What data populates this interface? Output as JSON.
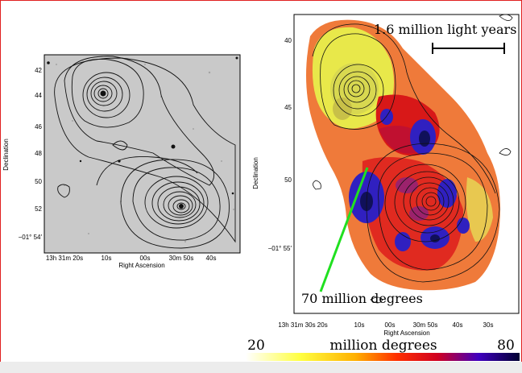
{
  "left_panel": {
    "y_axis_label": "Declination",
    "x_axis_label": "Right Ascension",
    "y_ticks": [
      "42",
      "44",
      "46",
      "48",
      "50",
      "52",
      "−01° 54′"
    ],
    "x_ticks": [
      "13h 31m 20s",
      "10s",
      "00s",
      "30m 50s",
      "40s"
    ]
  },
  "right_panel": {
    "y_axis_label": "Declination",
    "x_axis_label": "Right Ascension",
    "y_ticks": [
      "40",
      "45",
      "50",
      "−01° 55′"
    ],
    "x_ticks": [
      "13h 31m 30s 20s",
      "10s",
      "00s",
      "30m 50s",
      "40s",
      "30s"
    ],
    "scale_label": "1.6 million light years",
    "annotation": "70 million degrees"
  },
  "colorbar": {
    "min_label": "20",
    "title": "million degrees",
    "max_label": "80",
    "colors": [
      "#ffffff",
      "#ffff40",
      "#ffb000",
      "#ff3000",
      "#d00020",
      "#4000c0",
      "#000030"
    ]
  }
}
